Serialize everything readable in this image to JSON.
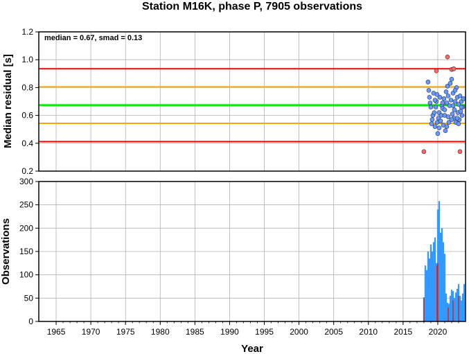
{
  "chart_data": [
    {
      "type": "scatter",
      "title": "Station M16K, phase P, 7905 observations",
      "ylabel": "Median residual [s]",
      "annotation": "median = 0.67, smad = 0.13",
      "xlim": [
        1962.5,
        2024.0
      ],
      "ylim": [
        0.2,
        1.2
      ],
      "yticks": [
        "0.2",
        "0.4",
        "0.6",
        "0.8",
        "1.0",
        "1.2"
      ],
      "grid": true,
      "reference_lines": [
        {
          "y": 0.935,
          "color": "#ff0000"
        },
        {
          "y": 0.805,
          "color": "#ffa500"
        },
        {
          "y": 0.673,
          "color": "#00ee00"
        },
        {
          "y": 0.543,
          "color": "#ffa500"
        },
        {
          "y": 0.412,
          "color": "#ff0000"
        }
      ],
      "series": [
        {
          "color": "#6699ff",
          "points": [
            [
              2018.6,
              0.84
            ],
            [
              2018.7,
              0.78
            ],
            [
              2018.8,
              0.73
            ],
            [
              2018.9,
              0.69
            ],
            [
              2019.0,
              0.66
            ],
            [
              2019.1,
              0.54
            ],
            [
              2019.2,
              0.57
            ],
            [
              2019.3,
              0.6
            ],
            [
              2019.4,
              0.76
            ],
            [
              2019.5,
              0.62
            ],
            [
              2019.6,
              0.52
            ],
            [
              2019.7,
              0.66
            ],
            [
              2019.8,
              0.7
            ],
            [
              2019.9,
              0.55
            ],
            [
              2020.0,
              0.47
            ],
            [
              2020.1,
              0.58
            ],
            [
              2020.2,
              0.62
            ],
            [
              2020.3,
              0.73
            ],
            [
              2020.4,
              0.56
            ],
            [
              2020.5,
              0.6
            ],
            [
              2020.6,
              0.67
            ],
            [
              2020.7,
              0.65
            ],
            [
              2020.8,
              0.53
            ],
            [
              2020.9,
              0.72
            ],
            [
              2021.0,
              0.6
            ],
            [
              2021.1,
              0.49
            ],
            [
              2021.2,
              0.77
            ],
            [
              2021.3,
              0.69
            ],
            [
              2021.4,
              0.81
            ],
            [
              2021.5,
              0.74
            ],
            [
              2021.6,
              0.55
            ],
            [
              2021.7,
              0.67
            ],
            [
              2021.8,
              0.83
            ],
            [
              2021.9,
              0.71
            ],
            [
              2022.0,
              0.86
            ],
            [
              2022.1,
              0.61
            ],
            [
              2022.2,
              0.76
            ],
            [
              2022.3,
              0.58
            ],
            [
              2022.4,
              0.64
            ],
            [
              2022.5,
              0.7
            ],
            [
              2022.6,
              0.55
            ],
            [
              2022.7,
              0.8
            ],
            [
              2022.8,
              0.73
            ],
            [
              2022.9,
              0.62
            ],
            [
              2023.0,
              0.68
            ],
            [
              2023.1,
              0.57
            ],
            [
              2023.2,
              0.74
            ],
            [
              2023.3,
              0.63
            ],
            [
              2023.4,
              0.7
            ],
            [
              2023.5,
              0.6
            ],
            [
              2023.6,
              0.66
            ],
            [
              2023.7,
              0.72
            ],
            [
              2019.6,
              0.71
            ],
            [
              2020.2,
              0.51
            ],
            [
              2021.0,
              0.64
            ],
            [
              2021.5,
              0.59
            ],
            [
              2022.0,
              0.57
            ],
            [
              2022.5,
              0.78
            ],
            [
              2023.0,
              0.54
            ],
            [
              2023.4,
              0.66
            ],
            [
              2019.9,
              0.75
            ],
            [
              2020.7,
              0.69
            ],
            [
              2021.3,
              0.52
            ],
            [
              2022.2,
              0.67
            ],
            [
              2022.8,
              0.58
            ]
          ]
        },
        {
          "color": "#ff6666",
          "points": [
            [
              2018.0,
              0.34
            ],
            [
              2019.8,
              0.92
            ],
            [
              2021.4,
              1.02
            ],
            [
              2022.0,
              0.93
            ],
            [
              2022.3,
              0.935
            ],
            [
              2023.2,
              0.34
            ]
          ]
        }
      ]
    },
    {
      "type": "bar",
      "ylabel": "Observations",
      "xlabel": "Year",
      "xlim": [
        1962.5,
        2024.0
      ],
      "ylim": [
        0,
        300
      ],
      "xticks": [
        "1965",
        "1970",
        "1975",
        "1980",
        "1985",
        "1990",
        "1995",
        "2000",
        "2005",
        "2010",
        "2015",
        "2020"
      ],
      "yticks": [
        "0",
        "50",
        "100",
        "150",
        "200",
        "250",
        "300"
      ],
      "grid": true,
      "series": [
        {
          "color": "#3399ff",
          "x": [
            2018.0,
            2018.2,
            2018.4,
            2018.6,
            2018.8,
            2019.0,
            2019.2,
            2019.4,
            2019.6,
            2019.8,
            2020.0,
            2020.2,
            2020.4,
            2020.6,
            2020.8,
            2021.0,
            2021.2,
            2021.4,
            2021.6,
            2021.8,
            2022.0,
            2022.2,
            2022.4,
            2022.6,
            2022.8,
            2023.0,
            2023.2,
            2023.4,
            2023.6,
            2023.8
          ],
          "values": [
            52,
            120,
            110,
            150,
            135,
            165,
            150,
            170,
            180,
            125,
            240,
            258,
            190,
            200,
            170,
            145,
            60,
            40,
            38,
            55,
            68,
            65,
            50,
            62,
            70,
            80,
            55,
            45,
            60,
            80
          ]
        },
        {
          "color": "#cc2222",
          "x": [
            2018.0,
            2019.9,
            2020.0,
            2021.5,
            2022.2,
            2023.0
          ],
          "values": [
            50,
            120,
            125,
            30,
            45,
            55
          ]
        }
      ]
    }
  ]
}
